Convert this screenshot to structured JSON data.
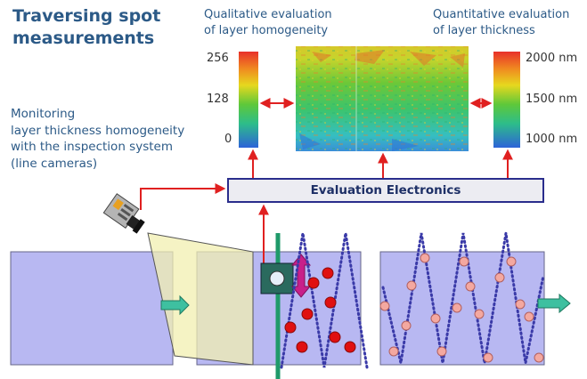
{
  "title": "Traversing spot\nmeasurements",
  "captions": {
    "qualitative": "Qualitative evaluation\nof layer homogeneity",
    "quantitative": "Quantitative evaluation\nof layer thickness"
  },
  "monitoring_text": "Monitoring\nlayer thickness homogeneity\nwith the inspection system\n(line cameras)",
  "left_scale": {
    "ticks": [
      "256",
      "128",
      "0"
    ]
  },
  "right_scale": {
    "ticks": [
      "2000 nm",
      "1500 nm",
      "1000 nm"
    ]
  },
  "evaluation_box": "Evaluation Electronics",
  "colors": {
    "title": "#2c5a87",
    "arrow": "#e02020",
    "box_border": "#2a2d8c",
    "panel_fill": "#b8b8f2",
    "flow_arrow": "#3ec0a0",
    "dotted_path": "#3a3aa8",
    "measurement_dot_red": "#e01010",
    "measurement_dot_pink": "#f4a8a0"
  },
  "icons": [
    "line-camera-icon",
    "sensor-head-icon",
    "double-arrow-icon",
    "flow-arrow-icon"
  ]
}
